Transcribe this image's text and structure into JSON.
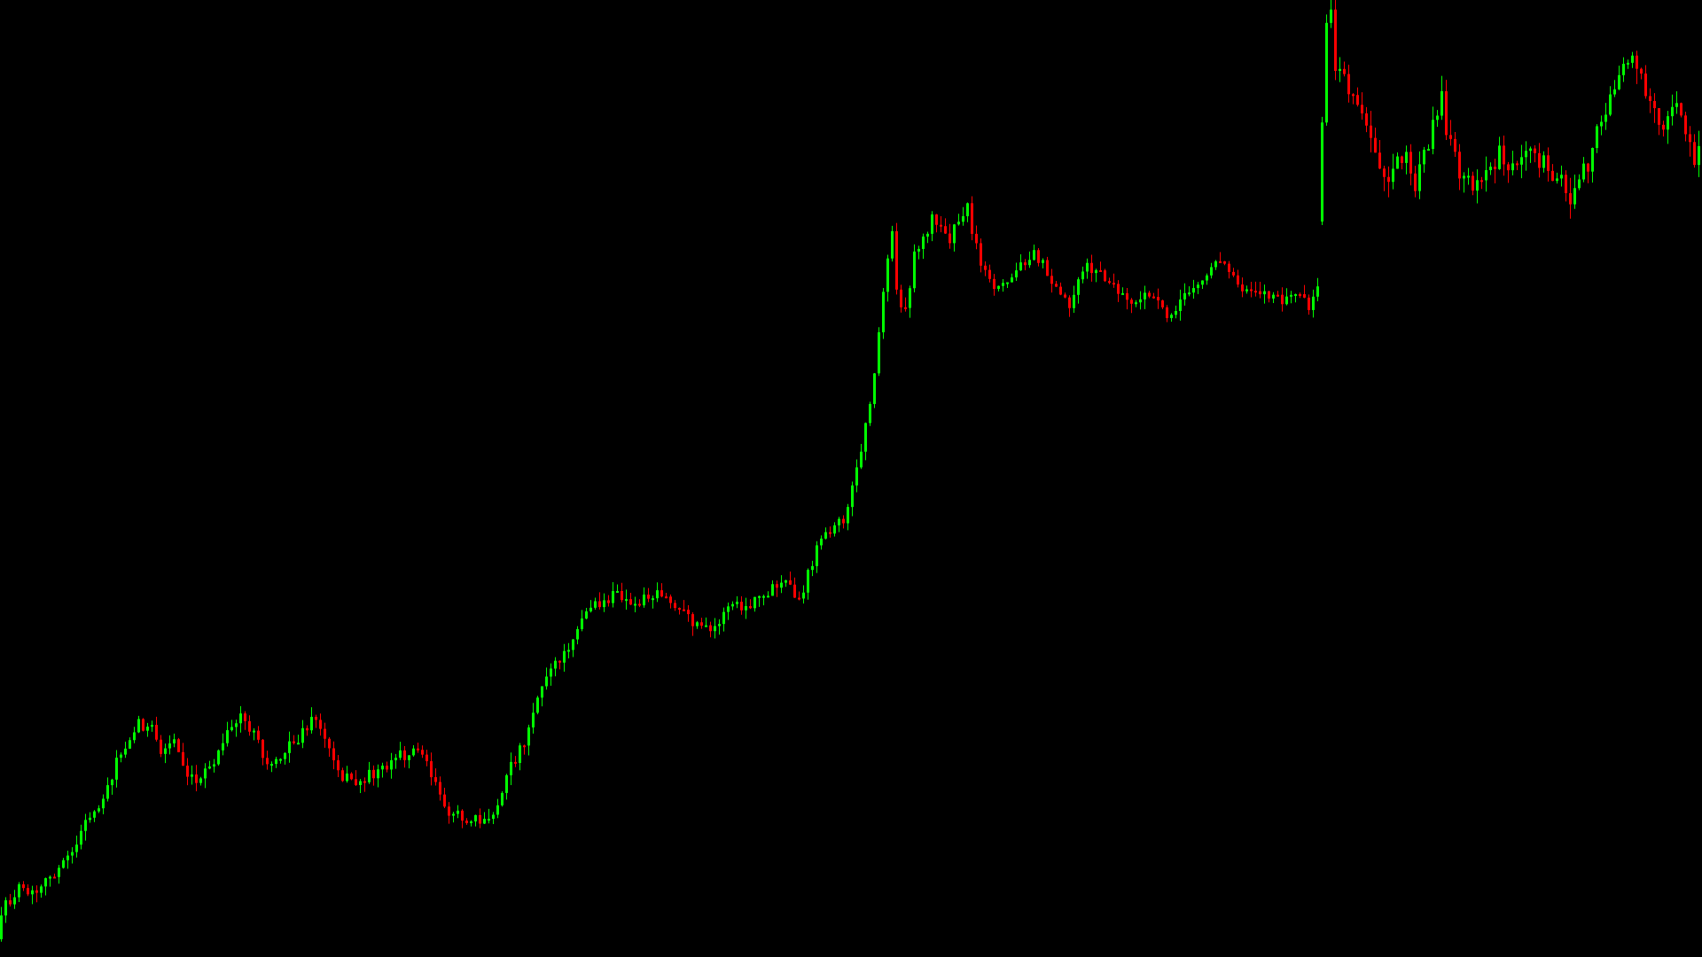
{
  "chart_data": {
    "type": "candlestick",
    "title": "",
    "xlabel": "",
    "ylabel": "",
    "grid": false,
    "legend": "none",
    "colors": {
      "background": "#000000",
      "up": "#00ff00",
      "down": "#ff0000"
    },
    "ylim": [
      0,
      1080
    ],
    "anchors": [
      [
        0,
        1060
      ],
      [
        10,
        1020
      ],
      [
        25,
        1005
      ],
      [
        45,
        1010
      ],
      [
        60,
        990
      ],
      [
        80,
        970
      ],
      [
        100,
        930
      ],
      [
        120,
        900
      ],
      [
        135,
        860
      ],
      [
        150,
        830
      ],
      [
        160,
        815
      ],
      [
        175,
        825
      ],
      [
        185,
        850
      ],
      [
        200,
        835
      ],
      [
        215,
        870
      ],
      [
        230,
        880
      ],
      [
        245,
        860
      ],
      [
        260,
        830
      ],
      [
        275,
        805
      ],
      [
        290,
        830
      ],
      [
        305,
        865
      ],
      [
        320,
        850
      ],
      [
        335,
        840
      ],
      [
        350,
        820
      ],
      [
        360,
        810
      ],
      [
        375,
        845
      ],
      [
        390,
        875
      ],
      [
        405,
        885
      ],
      [
        420,
        875
      ],
      [
        435,
        865
      ],
      [
        450,
        855
      ],
      [
        465,
        850
      ],
      [
        480,
        845
      ],
      [
        495,
        885
      ],
      [
        510,
        915
      ],
      [
        525,
        925
      ],
      [
        540,
        920
      ],
      [
        555,
        930
      ],
      [
        565,
        910
      ],
      [
        580,
        865
      ],
      [
        595,
        835
      ],
      [
        610,
        785
      ],
      [
        625,
        755
      ],
      [
        640,
        740
      ],
      [
        655,
        705
      ],
      [
        670,
        685
      ],
      [
        685,
        680
      ],
      [
        700,
        670
      ],
      [
        715,
        685
      ],
      [
        730,
        675
      ],
      [
        745,
        665
      ],
      [
        760,
        680
      ],
      [
        775,
        695
      ],
      [
        790,
        705
      ],
      [
        805,
        715
      ],
      [
        815,
        700
      ],
      [
        830,
        680
      ],
      [
        845,
        690
      ],
      [
        860,
        675
      ],
      [
        875,
        665
      ],
      [
        890,
        660
      ],
      [
        905,
        680
      ],
      [
        915,
        650
      ],
      [
        925,
        620
      ],
      [
        940,
        600
      ],
      [
        955,
        585
      ],
      [
        965,
        550
      ],
      [
        975,
        510
      ],
      [
        982,
        470
      ],
      [
        990,
        420
      ],
      [
        995,
        380
      ],
      [
        1000,
        330
      ],
      [
        1005,
        290
      ],
      [
        1010,
        260
      ],
      [
        1015,
        330
      ],
      [
        1025,
        350
      ],
      [
        1035,
        290
      ],
      [
        1045,
        270
      ],
      [
        1055,
        245
      ],
      [
        1065,
        260
      ],
      [
        1075,
        270
      ],
      [
        1085,
        245
      ],
      [
        1095,
        235
      ],
      [
        1105,
        280
      ],
      [
        1115,
        310
      ],
      [
        1125,
        330
      ],
      [
        1140,
        320
      ],
      [
        1155,
        300
      ],
      [
        1170,
        280
      ],
      [
        1180,
        300
      ],
      [
        1195,
        320
      ],
      [
        1210,
        345
      ],
      [
        1220,
        310
      ],
      [
        1230,
        300
      ],
      [
        1245,
        310
      ],
      [
        1260,
        325
      ],
      [
        1275,
        340
      ],
      [
        1290,
        340
      ],
      [
        1305,
        330
      ],
      [
        1320,
        355
      ],
      [
        1335,
        340
      ],
      [
        1350,
        325
      ],
      [
        1365,
        310
      ],
      [
        1375,
        295
      ],
      [
        1390,
        305
      ],
      [
        1405,
        325
      ],
      [
        1420,
        325
      ],
      [
        1435,
        335
      ],
      [
        1450,
        340
      ],
      [
        1465,
        330
      ],
      [
        1480,
        345
      ],
      [
        1495,
        310
      ],
      [
        1505,
        325
      ],
      [
        1520,
        315
      ],
      [
        1535,
        305
      ],
      [
        1545,
        315
      ],
      [
        1555,
        325
      ],
      [
        1565,
        335
      ],
      [
        1580,
        345
      ],
      [
        1595,
        330
      ],
      [
        1600,
        325
      ],
      [
        1490,
        325
      ]
    ],
    "segments": [
      {
        "name": "",
        "from": 0,
        "to": 1490,
        "step": 5
      },
      {
        "name": "",
        "from": 1490,
        "to": 1920,
        "step": 5
      }
    ],
    "gap_segment": {
      "from": 1490,
      "to": 1920,
      "anchors": [
        [
          1490,
          250
        ],
        [
          1495,
          140
        ],
        [
          1500,
          30
        ],
        [
          1505,
          5
        ],
        [
          1510,
          75
        ],
        [
          1520,
          90
        ],
        [
          1530,
          115
        ],
        [
          1540,
          130
        ],
        [
          1550,
          150
        ],
        [
          1560,
          190
        ],
        [
          1570,
          200
        ],
        [
          1580,
          170
        ],
        [
          1590,
          180
        ],
        [
          1600,
          210
        ],
        [
          1610,
          175
        ],
        [
          1620,
          140
        ],
        [
          1630,
          110
        ],
        [
          1635,
          150
        ],
        [
          1645,
          180
        ],
        [
          1655,
          205
        ],
        [
          1670,
          210
        ],
        [
          1685,
          190
        ],
        [
          1695,
          170
        ],
        [
          1710,
          190
        ],
        [
          1725,
          165
        ],
        [
          1740,
          180
        ],
        [
          1755,
          195
        ],
        [
          1765,
          200
        ],
        [
          1775,
          230
        ],
        [
          1785,
          205
        ],
        [
          1795,
          185
        ],
        [
          1805,
          150
        ],
        [
          1815,
          120
        ],
        [
          1825,
          110
        ],
        [
          1835,
          70
        ],
        [
          1845,
          55
        ],
        [
          1855,
          85
        ],
        [
          1865,
          120
        ],
        [
          1875,
          145
        ],
        [
          1885,
          130
        ],
        [
          1895,
          115
        ],
        [
          1905,
          150
        ],
        [
          1915,
          180
        ],
        [
          1920,
          175
        ]
      ]
    }
  }
}
